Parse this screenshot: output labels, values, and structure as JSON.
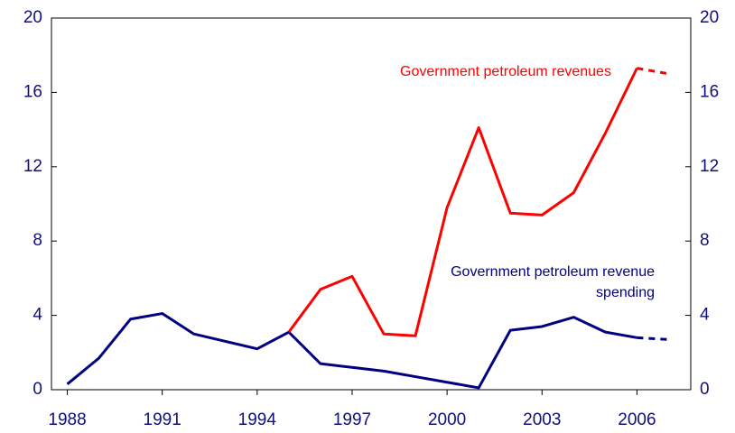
{
  "chart_data": {
    "type": "line",
    "x": [
      1988,
      1989,
      1990,
      1991,
      1992,
      1993,
      1994,
      1995,
      1996,
      1997,
      1998,
      1999,
      2000,
      2001,
      2002,
      2003,
      2004,
      2005,
      2006,
      2007
    ],
    "series": [
      {
        "name": "Government petroleum revenues",
        "color": "#ff0000",
        "values": [
          null,
          null,
          null,
          null,
          null,
          null,
          null,
          3.1,
          5.4,
          6.1,
          3.0,
          2.9,
          9.8,
          14.1,
          9.5,
          9.4,
          10.6,
          13.8,
          17.3,
          17.0
        ]
      },
      {
        "name": "Government petroleum revenue spending",
        "color": "#000080",
        "values": [
          0.3,
          1.7,
          3.8,
          4.1,
          3.0,
          2.6,
          2.2,
          3.1,
          1.4,
          1.2,
          1.0,
          0.7,
          0.4,
          0.1,
          3.2,
          3.4,
          3.9,
          3.1,
          2.8,
          2.7
        ]
      }
    ],
    "forecast_from": 2006,
    "xlim": [
      1987.5,
      2007.7
    ],
    "xticks": [
      1988,
      1991,
      1994,
      1997,
      2000,
      2003,
      2006
    ],
    "ylim": [
      0,
      20
    ],
    "yticks": [
      0,
      4,
      8,
      12,
      16,
      20
    ],
    "y2lim": [
      0,
      20
    ],
    "y2ticks": [
      0,
      4,
      8,
      12,
      16,
      20
    ]
  }
}
